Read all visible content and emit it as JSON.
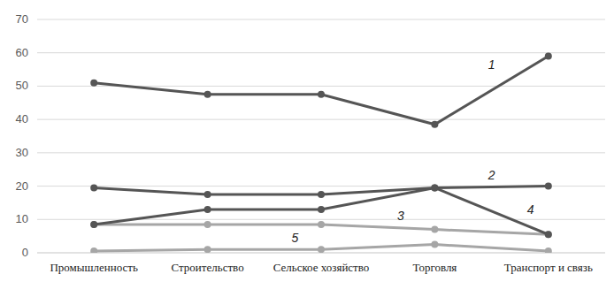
{
  "chart_data": {
    "type": "line",
    "categories": [
      "Промышленность",
      "Строительство",
      "Сельское хозяйство",
      "Торговля",
      "Транспорт и связь"
    ],
    "series": [
      {
        "name": "1",
        "color": "#555555",
        "marker": "circle",
        "values": [
          51,
          47.5,
          47.5,
          38.5,
          59
        ]
      },
      {
        "name": "2",
        "color": "#555555",
        "marker": "circle",
        "values": [
          19.5,
          17.5,
          17.5,
          19.5,
          20
        ]
      },
      {
        "name": "3",
        "color": "#a6a6a6",
        "marker": "circle",
        "values": [
          8.5,
          8.5,
          8.5,
          7,
          5.5
        ]
      },
      {
        "name": "4",
        "color": "#555555",
        "marker": "circle",
        "values": [
          8.5,
          13,
          13,
          19.5,
          5.5
        ]
      },
      {
        "name": "5",
        "color": "#a6a6a6",
        "marker": "circle",
        "values": [
          0.5,
          1,
          1,
          2.5,
          0.5
        ]
      }
    ],
    "ylim": [
      0,
      70
    ],
    "yticks": [
      0,
      10,
      20,
      30,
      40,
      50,
      60,
      70
    ],
    "grid": true
  }
}
